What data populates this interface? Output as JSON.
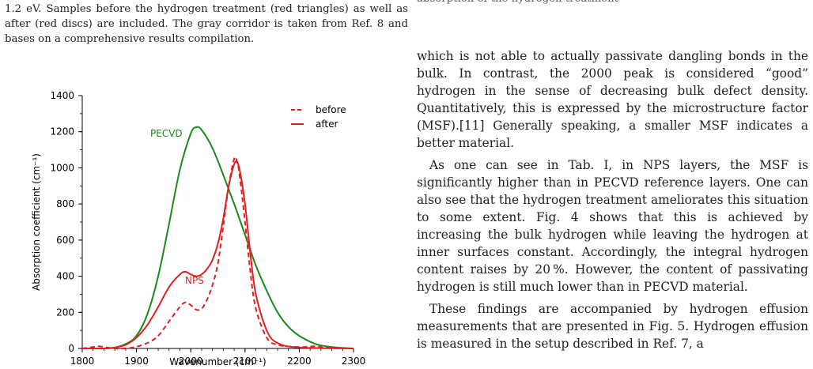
{
  "left_caption": {
    "text": "1.2 eV. Samples before the hydrogen treatment (red triangles) as well as after (red discs) are included. The gray corridor is taken from Ref. 8 and bases on a comprehensive results compilation."
  },
  "top_fragment": {
    "text": "absorption of the hydrogen treatment"
  },
  "right_column": {
    "paragraphs": [
      "which is not able to actually passivate dangling bonds in the bulk. In contrast, the 2000 peak is considered “good” hydrogen in the sense of decreasing bulk defect density. Quantitatively, this is expressed by the microstructure factor (MSF).[11] Generally speaking, a smaller MSF indicates a better material.",
      "As one can see in Tab. I, in NPS layers, the MSF is significantly higher than in PECVD reference layers. One can also see that the hydrogen treatment ameliorates this situation to some extent. Fig. 4 shows that this is achieved by increasing the bulk hydrogen while leaving the hydrogen at inner surfaces constant. Accordingly, the integral hydrogen content raises by 20 %. However, the content of passivating hydrogen is still much lower than in PECVD material.",
      "These findings are accompanied by hydrogen effusion measurements that are presented in Fig. 5. Hydrogen effusion is measured in the setup described in Ref. 7, a"
    ]
  },
  "chart_data": {
    "type": "line",
    "xlabel": "Wavenumber (cm⁻¹)",
    "ylabel": "Absorption coefficient (cm⁻¹)",
    "xlim": [
      1800,
      2300
    ],
    "ylim": [
      0,
      1400
    ],
    "xticks": [
      "1800",
      "1900",
      "2000",
      "2100",
      "2200",
      "2300"
    ],
    "yticks": [
      "0",
      "200",
      "400",
      "600",
      "800",
      "1000",
      "1200",
      "1400"
    ],
    "legend": {
      "placement": "top-right",
      "entries": [
        "before",
        "after"
      ]
    },
    "annotations": [
      {
        "text": "PECVD",
        "color": "#1a8a1a"
      },
      {
        "text": "NPS",
        "color": "#e02020"
      }
    ],
    "series": [
      {
        "name": "PECVD",
        "color": "#1a8a1a",
        "dash": "solid",
        "x": [
          1800,
          1840,
          1860,
          1880,
          1900,
          1920,
          1940,
          1960,
          1980,
          2000,
          2010,
          2020,
          2040,
          2060,
          2080,
          2100,
          2120,
          2140,
          2160,
          2180,
          2200,
          2230,
          2260,
          2300
        ],
        "y": [
          0,
          0,
          5,
          25,
          70,
          190,
          400,
          690,
          990,
          1190,
          1225,
          1210,
          1110,
          960,
          800,
          630,
          460,
          320,
          200,
          120,
          70,
          25,
          8,
          0
        ]
      },
      {
        "name": "before",
        "color": "#e02020",
        "dash": "dashed",
        "x": [
          1800,
          1820,
          1830,
          1840,
          1860,
          1880,
          1900,
          1920,
          1940,
          1960,
          1980,
          1990,
          2000,
          2010,
          2020,
          2030,
          2040,
          2050,
          2060,
          2070,
          2080,
          2085,
          2090,
          2100,
          2110,
          2120,
          2140,
          2160,
          2200,
          2230,
          2250,
          2300
        ],
        "y": [
          0,
          8,
          12,
          8,
          0,
          0,
          10,
          30,
          70,
          150,
          230,
          255,
          240,
          215,
          220,
          270,
          350,
          470,
          680,
          900,
          1050,
          1040,
          960,
          700,
          420,
          220,
          60,
          20,
          8,
          12,
          5,
          0
        ]
      },
      {
        "name": "after",
        "color": "#e02020",
        "dash": "solid",
        "x": [
          1800,
          1840,
          1860,
          1880,
          1900,
          1920,
          1940,
          1960,
          1980,
          1990,
          2000,
          2010,
          2020,
          2030,
          2040,
          2050,
          2060,
          2070,
          2080,
          2085,
          2090,
          2100,
          2110,
          2120,
          2140,
          2160,
          2200,
          2300
        ],
        "y": [
          0,
          0,
          5,
          20,
          60,
          130,
          230,
          340,
          410,
          425,
          410,
          400,
          410,
          440,
          490,
          580,
          720,
          900,
          1020,
          1030,
          990,
          800,
          520,
          300,
          100,
          30,
          5,
          0
        ]
      }
    ]
  }
}
